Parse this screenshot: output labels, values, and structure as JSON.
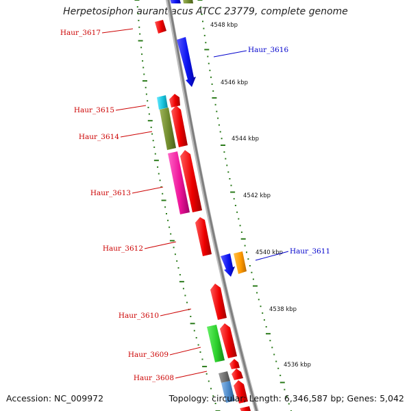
{
  "title": "Herpetosiphon aurantiacus ATCC 23779, complete genome",
  "footer": {
    "accession": "Accession: NC_009972",
    "summary": "Topology: circular; Length: 6,346,587 bp; Genes: 5,042"
  },
  "colors": {
    "forward_label": "#cc0000",
    "reverse_label": "#0000cc",
    "backbone": "#8a8a8a",
    "tick": "#2a7a1a"
  },
  "ticks": [
    {
      "label": "4548 kbp"
    },
    {
      "label": "4546 kbp"
    },
    {
      "label": "4544 kbp"
    },
    {
      "label": "4542 kbp"
    },
    {
      "label": "4540 kbp"
    },
    {
      "label": "4538 kbp"
    },
    {
      "label": "4536 kbp"
    }
  ],
  "gene_labels": [
    {
      "name": "Haur_3617",
      "strand": "forward"
    },
    {
      "name": "Haur_3616",
      "strand": "reverse"
    },
    {
      "name": "Haur_3615",
      "strand": "forward"
    },
    {
      "name": "Haur_3614",
      "strand": "forward"
    },
    {
      "name": "Haur_3613",
      "strand": "forward"
    },
    {
      "name": "Haur_3612",
      "strand": "forward"
    },
    {
      "name": "Haur_3611",
      "strand": "reverse"
    },
    {
      "name": "Haur_3610",
      "strand": "forward"
    },
    {
      "name": "Haur_3609",
      "strand": "forward"
    },
    {
      "name": "Haur_3608",
      "strand": "forward"
    }
  ]
}
